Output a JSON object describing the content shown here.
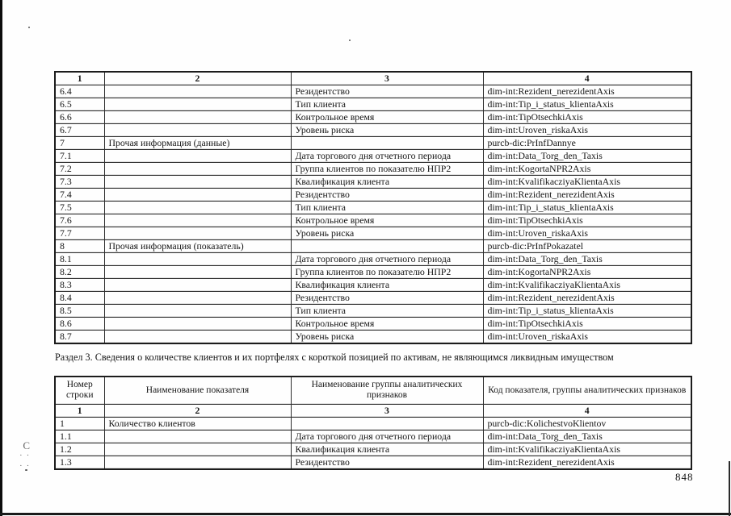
{
  "page": {
    "number": "848",
    "section3_title": "Раздел 3. Сведения о количестве клиентов и их портфелях с короткой позицией по активам, не являющимся ликвидным имуществом",
    "margin_mark": "С"
  },
  "table1": {
    "column_numbers": [
      "1",
      "2",
      "3",
      "4"
    ],
    "rows": [
      {
        "num": "6.4",
        "name": "",
        "group": "Резидентство",
        "code": "dim-int:Rezident_nerezidentAxis"
      },
      {
        "num": "6.5",
        "name": "",
        "group": "Тип клиента",
        "code": "dim-int:Tip_i_status_klientaAxis"
      },
      {
        "num": "6.6",
        "name": "",
        "group": "Контрольное время",
        "code": "dim-int:TipOtsechkiAxis"
      },
      {
        "num": "6.7",
        "name": "",
        "group": "Уровень риска",
        "code": "dim-int:Uroven_riskaAxis"
      },
      {
        "num": "7",
        "name": "Прочая информация (данные)",
        "group": "",
        "code": "purcb-dic:PrInfDannye"
      },
      {
        "num": "7.1",
        "name": "",
        "group": "Дата торгового дня отчетного периода",
        "code": "dim-int:Data_Torg_den_Taxis"
      },
      {
        "num": "7.2",
        "name": "",
        "group": "Группа клиентов по показателю НПР2",
        "code": "dim-int:KogortaNPR2Axis"
      },
      {
        "num": "7.3",
        "name": "",
        "group": "Квалификация клиента",
        "code": "dim-int:KvalifikacziyaKlientaAxis"
      },
      {
        "num": "7.4",
        "name": "",
        "group": "Резидентство",
        "code": "dim-int:Rezident_nerezidentAxis"
      },
      {
        "num": "7.5",
        "name": "",
        "group": "Тип клиента",
        "code": "dim-int:Tip_i_status_klientaAxis"
      },
      {
        "num": "7.6",
        "name": "",
        "group": "Контрольное время",
        "code": "dim-int:TipOtsechkiAxis"
      },
      {
        "num": "7.7",
        "name": "",
        "group": "Уровень риска",
        "code": "dim-int:Uroven_riskaAxis"
      },
      {
        "num": "8",
        "name": "Прочая информация (показатель)",
        "group": "",
        "code": "purcb-dic:PrInfPokazatel"
      },
      {
        "num": "8.1",
        "name": "",
        "group": "Дата торгового дня отчетного периода",
        "code": "dim-int:Data_Torg_den_Taxis"
      },
      {
        "num": "8.2",
        "name": "",
        "group": "Группа клиентов по показателю НПР2",
        "code": "dim-int:KogortaNPR2Axis"
      },
      {
        "num": "8.3",
        "name": "",
        "group": "Квалификация клиента",
        "code": "dim-int:KvalifikacziyaKlientaAxis"
      },
      {
        "num": "8.4",
        "name": "",
        "group": "Резидентство",
        "code": "dim-int:Rezident_nerezidentAxis"
      },
      {
        "num": "8.5",
        "name": "",
        "group": "Тип клиента",
        "code": "dim-int:Tip_i_status_klientaAxis"
      },
      {
        "num": "8.6",
        "name": "",
        "group": "Контрольное время",
        "code": "dim-int:TipOtsechkiAxis"
      },
      {
        "num": "8.7",
        "name": "",
        "group": "Уровень риска",
        "code": "dim-int:Uroven_riskaAxis"
      }
    ]
  },
  "table2": {
    "headers": [
      "Номер строки",
      "Наименование показателя",
      "Наименование группы аналитических признаков",
      "Код показателя, группы аналитических признаков"
    ],
    "column_numbers": [
      "1",
      "2",
      "3",
      "4"
    ],
    "rows": [
      {
        "num": "1",
        "name": "Количество клиентов",
        "group": "",
        "code": "purcb-dic:KolichestvoKlientov"
      },
      {
        "num": "1.1",
        "name": "",
        "group": "Дата торгового дня отчетного периода",
        "code": "dim-int:Data_Torg_den_Taxis"
      },
      {
        "num": "1.2",
        "name": "",
        "group": "Квалификация клиента",
        "code": "dim-int:KvalifikacziyaKlientaAxis"
      },
      {
        "num": "1.3",
        "name": "",
        "group": "Резидентство",
        "code": "dim-int:Rezident_nerezidentAxis"
      }
    ]
  }
}
